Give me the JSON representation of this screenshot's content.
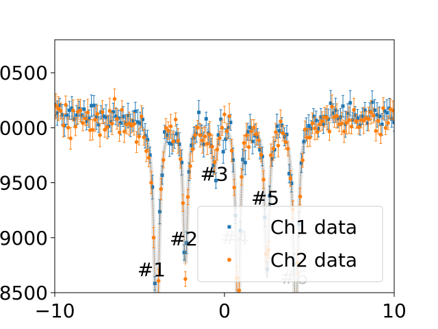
{
  "chart_data": {
    "type": "scatter",
    "title": "",
    "xlabel": "",
    "ylabel": "",
    "xlim": [
      -10,
      10
    ],
    "ylim": [
      8500,
      10800
    ],
    "x_ticks": [
      -10,
      0,
      10
    ],
    "x_tick_labels": [
      "−10",
      "0",
      "10"
    ],
    "y_ticks": [
      8500,
      9000,
      9500,
      10000,
      10500
    ],
    "y_tick_labels": [
      "8500",
      "9000",
      "9500",
      "10000",
      "10500"
    ],
    "grid": false,
    "legend_position": "bottom-right",
    "baseline": 10100,
    "dips": [
      {
        "label": "#1",
        "center": -4.0,
        "depth": 2000,
        "width": 0.18,
        "label_x": -4.3,
        "label_y": 8650,
        "label_color": "#000000"
      },
      {
        "label": "#2",
        "center": -2.3,
        "depth": 1300,
        "width": 0.16,
        "label_x": -2.4,
        "label_y": 8930,
        "label_color": "#000000"
      },
      {
        "label": "#3",
        "center": -0.6,
        "depth": 450,
        "width": 0.2,
        "label_x": -0.6,
        "label_y": 9520,
        "label_color": "#000000"
      },
      {
        "label": "#4",
        "center": 0.8,
        "depth": 1900,
        "width": 0.14,
        "label_x": 0.6,
        "label_y": 8940,
        "label_color": "#bfbfbf"
      },
      {
        "label": "#5",
        "center": 2.5,
        "depth": 1400,
        "width": 0.16,
        "label_x": 2.4,
        "label_y": 9300,
        "label_color": "#000000"
      },
      {
        "label": "#6",
        "center": 4.2,
        "depth": 1800,
        "width": 0.18,
        "label_x": 4.1,
        "label_y": 8580,
        "label_color": "#bfbfbf"
      }
    ],
    "series": [
      {
        "name": "Ch1 data",
        "color": "#1f77b4",
        "marker": "square",
        "noise_seed": 7,
        "noise": 90,
        "offset": 10
      },
      {
        "name": "Ch2 data",
        "color": "#ff7f0e",
        "marker": "circle",
        "noise_seed": 19,
        "noise": 90,
        "offset": -20
      }
    ],
    "n_points": 140
  }
}
